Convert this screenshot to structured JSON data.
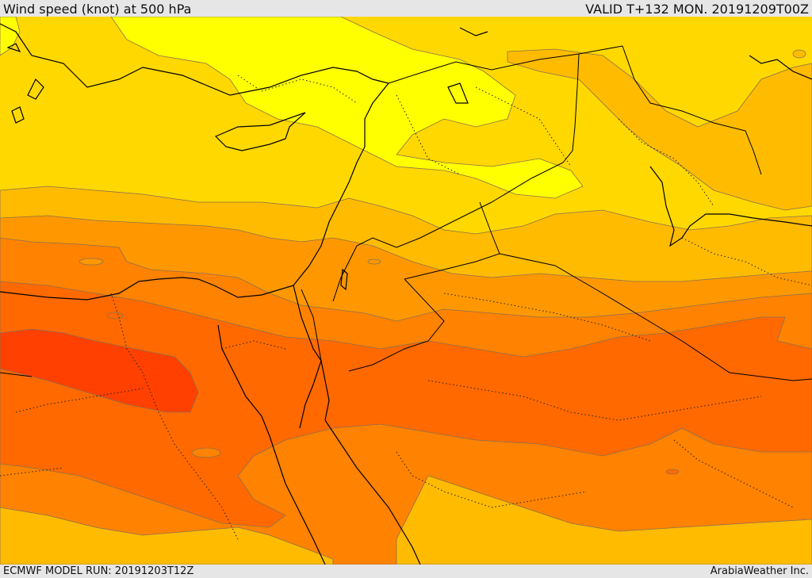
{
  "header": {
    "title": "Wind speed (knot) at 500 hPa",
    "valid": "VALID T+132 MON. 20191209T00Z"
  },
  "footer": {
    "model_run": "ECMWF MODEL RUN: 20191203T12Z",
    "credit": "ArabiaWeather Inc."
  },
  "map": {
    "field": "wind speed at 500 hPa",
    "fill_colors": {
      "band1": "#ffff00",
      "band2": "#ffd800",
      "band3": "#ffbb00",
      "band4": "#ff9800",
      "band5": "#ff8200",
      "band6": "#ff6900",
      "band7": "#ff5a00",
      "band8": "#ff4000"
    },
    "coastline_color": "#000000",
    "contour_color": "#7060a0"
  }
}
